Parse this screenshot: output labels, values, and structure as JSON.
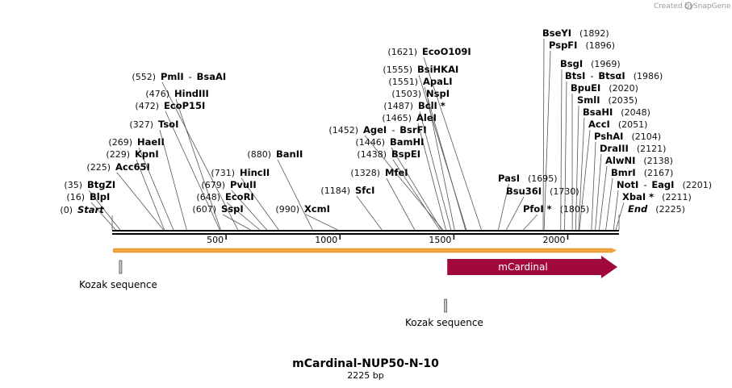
{
  "credit": {
    "text": "Created by",
    "brand": "SnapGene"
  },
  "title": "mCardinal-NUP50-N-10",
  "subtitle": "2225 bp",
  "length": 2225,
  "colors": {
    "arrow": "#a0093a",
    "orf": "#f2a33a",
    "kozak": "#c8c8c8",
    "backbone": "#000000"
  },
  "ticks": [
    {
      "value": 500,
      "label": "500"
    },
    {
      "value": 1000,
      "label": "1000"
    },
    {
      "value": 1500,
      "label": "1500"
    },
    {
      "value": 2000,
      "label": "2000"
    }
  ],
  "sites": [
    {
      "pos": "(0)",
      "name": "Start",
      "bp": 0,
      "italic": true
    },
    {
      "pos": "(16)",
      "name": "BlpI",
      "bp": 16
    },
    {
      "pos": "(35)",
      "name": "BtgZI",
      "bp": 35
    },
    {
      "pos": "(225)",
      "name": "Acc65I",
      "bp": 225
    },
    {
      "pos": "(229)",
      "name": "KpnI",
      "bp": 229
    },
    {
      "pos": "(269)",
      "name": "HaeII",
      "bp": 269
    },
    {
      "pos": "(327)",
      "name": "TsoI",
      "bp": 327
    },
    {
      "pos": "(472)",
      "name": "EcoP15I",
      "bp": 472
    },
    {
      "pos": "(476)",
      "name": "HindIII",
      "bp": 476
    },
    {
      "pos": "(552)",
      "name": "PmlI",
      "name2": "BsaAI",
      "bp": 552
    },
    {
      "pos": "(607)",
      "name": "SspI",
      "bp": 607,
      "leftPos": true
    },
    {
      "pos": "(648)",
      "name": "EcoRI",
      "bp": 648,
      "leftPos": true
    },
    {
      "pos": "(679)",
      "name": "PvuII",
      "bp": 679,
      "leftPos": true
    },
    {
      "pos": "(731)",
      "name": "HincII",
      "bp": 731,
      "leftPos": true
    },
    {
      "pos": "(880)",
      "name": "BanII",
      "bp": 880
    },
    {
      "pos": "(990)",
      "name": "XcmI",
      "bp": 990,
      "leftPos": true
    },
    {
      "pos": "(1184)",
      "name": "SfcI",
      "bp": 1184
    },
    {
      "pos": "(1328)",
      "name": "MfeI",
      "bp": 1328
    },
    {
      "pos": "(1438)",
      "name": "BspEI",
      "bp": 1438
    },
    {
      "pos": "(1446)",
      "name": "BamHI",
      "bp": 1446
    },
    {
      "pos": "(1452)",
      "name": "AgeI",
      "name2": "BsrFI",
      "bp": 1452
    },
    {
      "pos": "(1465)",
      "name": "AleI",
      "bp": 1465
    },
    {
      "pos": "(1487)",
      "name": "BclI *",
      "bp": 1487
    },
    {
      "pos": "(1503)",
      "name": "NspI",
      "bp": 1503
    },
    {
      "pos": "(1551)",
      "name": "ApaLI",
      "bp": 1551
    },
    {
      "pos": "(1555)",
      "name": "BsiHKAI",
      "bp": 1555
    },
    {
      "pos": "(1621)",
      "name": "EcoO109I",
      "bp": 1621
    },
    {
      "pos": "(1695)",
      "name": "PasI",
      "bp": 1695,
      "rightPos": true
    },
    {
      "pos": "(1730)",
      "name": "Bsu36I",
      "bp": 1730,
      "rightPos": true
    },
    {
      "pos": "(1805)",
      "name": "PfoI *",
      "bp": 1805,
      "rightPos": true
    },
    {
      "pos": "(1892)",
      "name": "BseYI",
      "bp": 1892
    },
    {
      "pos": "(1896)",
      "name": "PspFI",
      "bp": 1896
    },
    {
      "pos": "(1969)",
      "name": "BsgI",
      "bp": 1969
    },
    {
      "pos": "(1986)",
      "name": "BtsI",
      "name2": "BtsαI",
      "bp": 1986
    },
    {
      "pos": "(2020)",
      "name": "BpuEI",
      "bp": 2020
    },
    {
      "pos": "(2035)",
      "name": "SmlI",
      "bp": 2035
    },
    {
      "pos": "(2048)",
      "name": "BsaHI",
      "bp": 2048
    },
    {
      "pos": "(2051)",
      "name": "AccI",
      "bp": 2051
    },
    {
      "pos": "(2104)",
      "name": "PshAI",
      "bp": 2104
    },
    {
      "pos": "(2121)",
      "name": "DraIII",
      "bp": 2121
    },
    {
      "pos": "(2138)",
      "name": "AlwNI",
      "bp": 2138
    },
    {
      "pos": "(2167)",
      "name": "BmrI",
      "bp": 2167
    },
    {
      "pos": "(2201)",
      "name": "NotI",
      "name2": "EagI",
      "bp": 2201
    },
    {
      "pos": "(2211)",
      "name": "XbaI *",
      "bp": 2211
    },
    {
      "pos": "(2225)",
      "name": "End",
      "bp": 2225,
      "italic": true
    }
  ],
  "features": {
    "orf": {
      "start": 1,
      "end": 2225
    },
    "mcardinal": {
      "label": "mCardinal",
      "start": 1471,
      "end": 2218
    },
    "kozak1": {
      "label": "Kozak sequence",
      "start": 28,
      "end": 37
    },
    "kozak2": {
      "label": "Kozak sequence",
      "start": 1462,
      "end": 1471
    }
  }
}
